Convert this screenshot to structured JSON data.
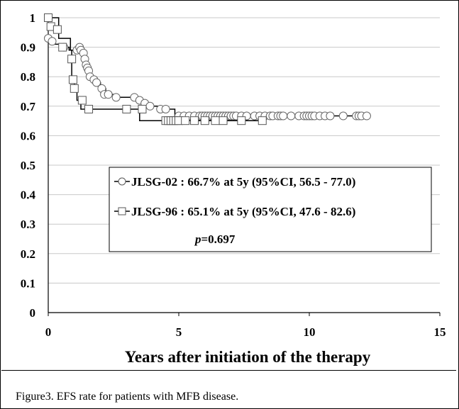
{
  "chart_data": {
    "type": "line",
    "subtype": "kaplan-meier",
    "title": "",
    "xlabel": "Years after initiation of the therapy",
    "ylabel": "",
    "xlim": [
      0,
      15
    ],
    "ylim": [
      0,
      1
    ],
    "xticks": [
      0,
      5,
      10,
      15
    ],
    "yticks": [
      0,
      0.1,
      0.2,
      0.3,
      0.4,
      0.5,
      0.6,
      0.7,
      0.8,
      0.9,
      1
    ],
    "ytick_labels": [
      "0",
      "0.1",
      "0.2",
      "0.3",
      "0.4",
      "0.5",
      "0.6",
      "0.7",
      "0.8",
      "0.9",
      "1"
    ],
    "grid": true,
    "series": [
      {
        "name": "JLSG-02",
        "marker": "circle",
        "legend_label": "JLSG-02 : 66.7% at 5y (95%CI, 56.5 - 77.0)",
        "x": [
          0,
          0.1,
          0.1,
          0.2,
          0.2,
          0.5,
          0.5,
          0.8,
          0.8,
          1.15,
          1.15,
          1.3,
          1.3,
          1.4,
          1.4,
          1.45,
          1.45,
          1.5,
          1.5,
          1.6,
          1.6,
          1.8,
          1.8,
          2.0,
          2.0,
          2.2,
          2.2,
          2.5,
          2.5,
          3.3,
          3.3,
          3.55,
          3.55,
          3.65,
          3.65,
          4.3,
          4.3,
          4.85,
          4.85,
          12.3
        ],
        "y": [
          0.93,
          0.93,
          0.92,
          0.92,
          0.91,
          0.91,
          0.9,
          0.9,
          0.89,
          0.89,
          0.88,
          0.88,
          0.86,
          0.86,
          0.84,
          0.84,
          0.82,
          0.82,
          0.8,
          0.8,
          0.79,
          0.79,
          0.78,
          0.78,
          0.76,
          0.76,
          0.74,
          0.74,
          0.73,
          0.73,
          0.72,
          0.72,
          0.71,
          0.71,
          0.7,
          0.7,
          0.69,
          0.69,
          0.667,
          0.667
        ],
        "censor_x": [
          0,
          0.15,
          0.6,
          1.1,
          1.2,
          1.25,
          1.35,
          1.4,
          1.45,
          1.5,
          1.55,
          1.6,
          1.75,
          1.85,
          2.05,
          2.15,
          2.3,
          2.6,
          3.3,
          3.5,
          3.7,
          3.9,
          4.3,
          4.5,
          5.0,
          5.2,
          5.4,
          5.6,
          5.8,
          5.9,
          6.0,
          6.1,
          6.2,
          6.3,
          6.4,
          6.5,
          6.6,
          6.7,
          6.8,
          6.9,
          7.0,
          7.1,
          7.2,
          7.4,
          7.6,
          7.9,
          8.1,
          8.3,
          8.5,
          8.6,
          8.8,
          8.9,
          9.0,
          9.3,
          9.6,
          9.8,
          9.9,
          10.0,
          10.1,
          10.2,
          10.4,
          10.6,
          10.8,
          11.3,
          11.8,
          11.9,
          12.0,
          12.2
        ],
        "censor_y": [
          0.93,
          0.92,
          0.9,
          0.89,
          0.9,
          0.89,
          0.88,
          0.86,
          0.84,
          0.83,
          0.82,
          0.8,
          0.79,
          0.78,
          0.76,
          0.74,
          0.74,
          0.73,
          0.73,
          0.72,
          0.71,
          0.7,
          0.69,
          0.69,
          0.667,
          0.667,
          0.667,
          0.667,
          0.667,
          0.667,
          0.667,
          0.667,
          0.667,
          0.667,
          0.667,
          0.667,
          0.667,
          0.667,
          0.667,
          0.667,
          0.667,
          0.667,
          0.667,
          0.667,
          0.667,
          0.667,
          0.667,
          0.667,
          0.667,
          0.667,
          0.667,
          0.667,
          0.667,
          0.667,
          0.667,
          0.667,
          0.667,
          0.667,
          0.667,
          0.667,
          0.667,
          0.667,
          0.667,
          0.667,
          0.667,
          0.667,
          0.667,
          0.667
        ]
      },
      {
        "name": "JLSG-96",
        "marker": "square",
        "legend_label": "JLSG-96 : 65.1% at 5y (95%CI, 47.6 - 82.6)",
        "x": [
          0,
          0.4,
          0.4,
          0.85,
          0.85,
          0.9,
          0.9,
          1.0,
          1.0,
          1.1,
          1.1,
          1.25,
          1.25,
          1.55,
          1.55,
          3.5,
          3.5,
          8.3
        ],
        "y": [
          1.0,
          1.0,
          0.93,
          0.93,
          0.89,
          0.89,
          0.79,
          0.79,
          0.76,
          0.76,
          0.72,
          0.72,
          0.69,
          0.69,
          0.69,
          0.69,
          0.651,
          0.651
        ],
        "censor_x": [
          0,
          0.1,
          0.35,
          0.55,
          0.9,
          0.95,
          1.0,
          1.3,
          1.55,
          3.0,
          3.6,
          4.5,
          4.6,
          4.7,
          4.8,
          4.9,
          5.0,
          5.25,
          5.6,
          6.0,
          6.4,
          6.7,
          7.4,
          8.2
        ],
        "censor_y": [
          1.0,
          0.97,
          0.96,
          0.9,
          0.86,
          0.79,
          0.76,
          0.72,
          0.69,
          0.69,
          0.69,
          0.651,
          0.651,
          0.651,
          0.651,
          0.651,
          0.651,
          0.651,
          0.651,
          0.651,
          0.651,
          0.651,
          0.651,
          0.651
        ]
      }
    ],
    "annotation": {
      "p_label": "p",
      "p_value": "=0.697"
    }
  },
  "caption": "Figure3. EFS rate for patients with MFB disease."
}
